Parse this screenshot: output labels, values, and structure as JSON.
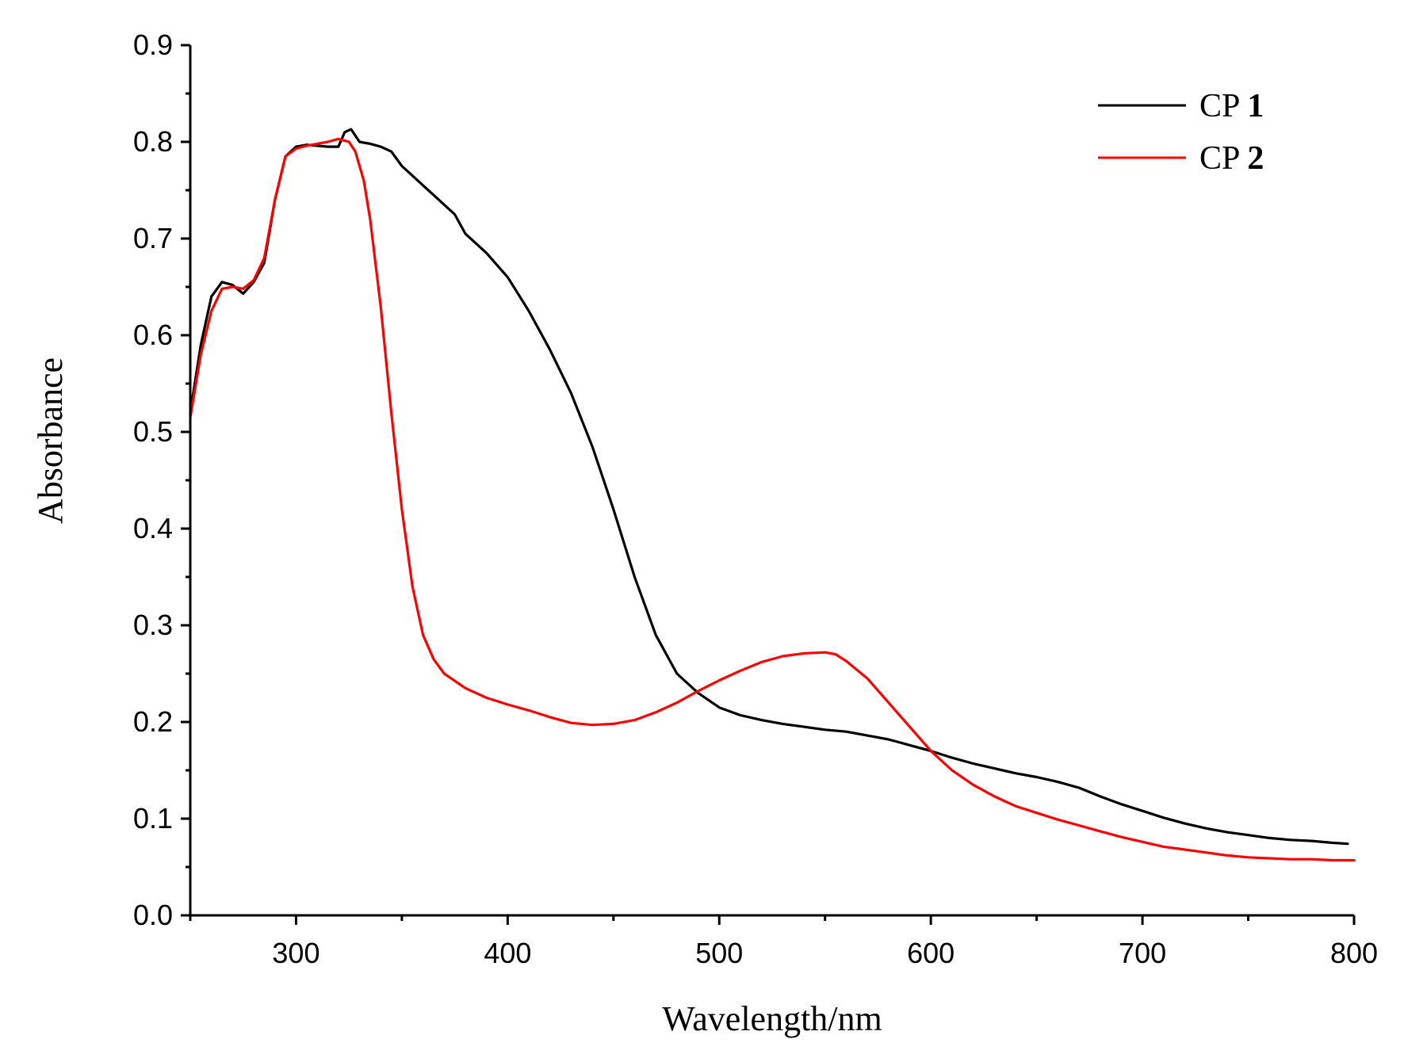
{
  "chart_data": {
    "type": "line",
    "title": "",
    "xlabel": "Wavelength/nm",
    "ylabel": "Absorbance",
    "xlim": [
      250,
      800
    ],
    "ylim": [
      0.0,
      0.9
    ],
    "x_ticks": [
      300,
      400,
      500,
      600,
      700,
      800
    ],
    "x_tick_labels": [
      "300",
      "400",
      "500",
      "600",
      "700",
      "800"
    ],
    "x_minor_step": 50,
    "y_ticks": [
      0.0,
      0.1,
      0.2,
      0.3,
      0.4,
      0.5,
      0.6,
      0.7,
      0.8,
      0.9
    ],
    "y_tick_labels": [
      "0.0",
      "0.1",
      "0.2",
      "0.3",
      "0.4",
      "0.5",
      "0.6",
      "0.7",
      "0.8",
      "0.9"
    ],
    "y_minor_step": 0.05,
    "grid": false,
    "legend_position": "top-right",
    "series": [
      {
        "name": "CP 1",
        "label_prefix": "CP ",
        "label_number": "1",
        "color": "#000000",
        "points": [
          [
            250,
            0.52
          ],
          [
            255,
            0.59
          ],
          [
            260,
            0.64
          ],
          [
            265,
            0.655
          ],
          [
            270,
            0.652
          ],
          [
            275,
            0.643
          ],
          [
            280,
            0.655
          ],
          [
            285,
            0.675
          ],
          [
            290,
            0.74
          ],
          [
            295,
            0.785
          ],
          [
            300,
            0.795
          ],
          [
            305,
            0.797
          ],
          [
            310,
            0.796
          ],
          [
            315,
            0.795
          ],
          [
            320,
            0.795
          ],
          [
            323,
            0.81
          ],
          [
            326,
            0.813
          ],
          [
            330,
            0.8
          ],
          [
            335,
            0.798
          ],
          [
            340,
            0.795
          ],
          [
            345,
            0.79
          ],
          [
            350,
            0.775
          ],
          [
            355,
            0.765
          ],
          [
            360,
            0.755
          ],
          [
            365,
            0.745
          ],
          [
            370,
            0.735
          ],
          [
            375,
            0.725
          ],
          [
            380,
            0.705
          ],
          [
            390,
            0.685
          ],
          [
            400,
            0.66
          ],
          [
            410,
            0.625
          ],
          [
            420,
            0.585
          ],
          [
            430,
            0.54
          ],
          [
            440,
            0.485
          ],
          [
            450,
            0.42
          ],
          [
            460,
            0.35
          ],
          [
            470,
            0.29
          ],
          [
            480,
            0.25
          ],
          [
            490,
            0.23
          ],
          [
            500,
            0.215
          ],
          [
            510,
            0.207
          ],
          [
            520,
            0.202
          ],
          [
            530,
            0.198
          ],
          [
            540,
            0.195
          ],
          [
            550,
            0.192
          ],
          [
            560,
            0.19
          ],
          [
            570,
            0.186
          ],
          [
            580,
            0.182
          ],
          [
            590,
            0.176
          ],
          [
            600,
            0.17
          ],
          [
            610,
            0.163
          ],
          [
            620,
            0.157
          ],
          [
            630,
            0.152
          ],
          [
            640,
            0.147
          ],
          [
            650,
            0.143
          ],
          [
            660,
            0.138
          ],
          [
            670,
            0.132
          ],
          [
            680,
            0.123
          ],
          [
            690,
            0.115
          ],
          [
            700,
            0.108
          ],
          [
            710,
            0.101
          ],
          [
            720,
            0.095
          ],
          [
            730,
            0.09
          ],
          [
            740,
            0.086
          ],
          [
            750,
            0.083
          ],
          [
            760,
            0.08
          ],
          [
            770,
            0.078
          ],
          [
            780,
            0.077
          ],
          [
            790,
            0.075
          ],
          [
            797,
            0.074
          ]
        ]
      },
      {
        "name": "CP 2",
        "label_prefix": "CP ",
        "label_number": "2",
        "color": "#ff0000",
        "points": [
          [
            250,
            0.515
          ],
          [
            255,
            0.58
          ],
          [
            260,
            0.625
          ],
          [
            265,
            0.648
          ],
          [
            270,
            0.65
          ],
          [
            275,
            0.648
          ],
          [
            280,
            0.657
          ],
          [
            285,
            0.68
          ],
          [
            290,
            0.74
          ],
          [
            295,
            0.785
          ],
          [
            300,
            0.793
          ],
          [
            305,
            0.796
          ],
          [
            310,
            0.798
          ],
          [
            315,
            0.8
          ],
          [
            320,
            0.803
          ],
          [
            325,
            0.8
          ],
          [
            328,
            0.79
          ],
          [
            332,
            0.76
          ],
          [
            335,
            0.72
          ],
          [
            340,
            0.63
          ],
          [
            345,
            0.52
          ],
          [
            350,
            0.42
          ],
          [
            355,
            0.34
          ],
          [
            360,
            0.29
          ],
          [
            365,
            0.265
          ],
          [
            370,
            0.25
          ],
          [
            380,
            0.235
          ],
          [
            390,
            0.225
          ],
          [
            400,
            0.218
          ],
          [
            410,
            0.212
          ],
          [
            420,
            0.205
          ],
          [
            430,
            0.199
          ],
          [
            440,
            0.197
          ],
          [
            450,
            0.198
          ],
          [
            460,
            0.202
          ],
          [
            470,
            0.21
          ],
          [
            480,
            0.22
          ],
          [
            490,
            0.232
          ],
          [
            500,
            0.243
          ],
          [
            510,
            0.253
          ],
          [
            520,
            0.262
          ],
          [
            530,
            0.268
          ],
          [
            540,
            0.271
          ],
          [
            550,
            0.272
          ],
          [
            555,
            0.27
          ],
          [
            560,
            0.263
          ],
          [
            570,
            0.245
          ],
          [
            580,
            0.22
          ],
          [
            590,
            0.195
          ],
          [
            600,
            0.17
          ],
          [
            610,
            0.15
          ],
          [
            620,
            0.135
          ],
          [
            630,
            0.123
          ],
          [
            640,
            0.113
          ],
          [
            650,
            0.106
          ],
          [
            660,
            0.099
          ],
          [
            670,
            0.093
          ],
          [
            680,
            0.087
          ],
          [
            690,
            0.081
          ],
          [
            700,
            0.076
          ],
          [
            710,
            0.071
          ],
          [
            720,
            0.068
          ],
          [
            730,
            0.065
          ],
          [
            740,
            0.062
          ],
          [
            750,
            0.06
          ],
          [
            760,
            0.059
          ],
          [
            770,
            0.058
          ],
          [
            780,
            0.058
          ],
          [
            790,
            0.057
          ],
          [
            800,
            0.057
          ]
        ]
      }
    ]
  }
}
